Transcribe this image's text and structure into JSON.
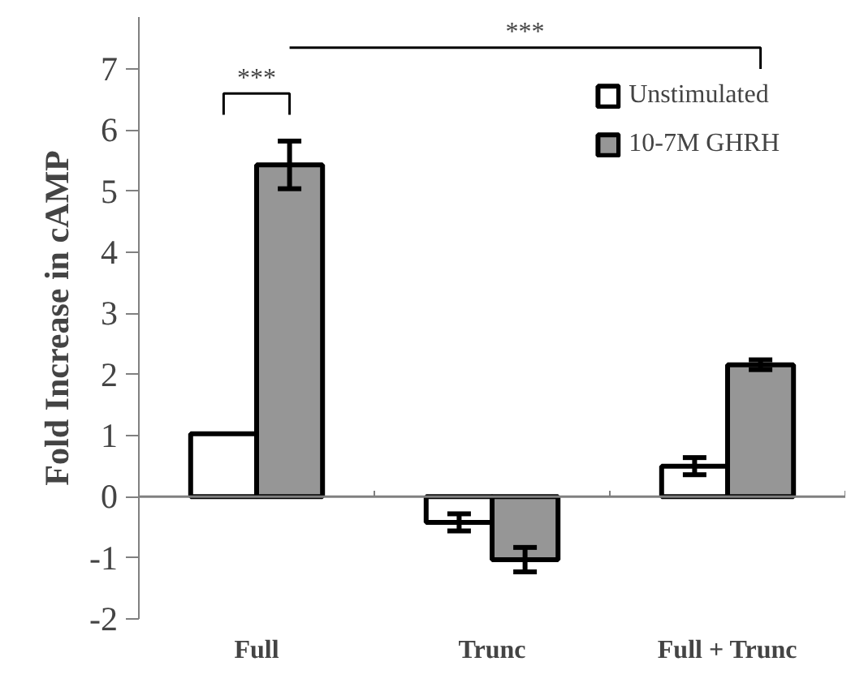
{
  "chart_data": {
    "type": "bar",
    "ylabel": "Fold Increase in cAMP",
    "categories": [
      "Full",
      "Trunc",
      "Full + Trunc"
    ],
    "series": [
      {
        "name": "Unstimulated",
        "color": "#ffffff",
        "values": [
          1.03,
          -0.42,
          0.5
        ],
        "errors": [
          null,
          0.14,
          0.14
        ]
      },
      {
        "name": "10-7M GHRH",
        "color": "#969696",
        "values": [
          5.43,
          -1.03,
          2.16
        ],
        "errors": [
          0.39,
          0.2,
          0.08
        ]
      }
    ],
    "ylim": [
      -2,
      7.85
    ],
    "ref_lines": [
      {
        "axis": "y",
        "value": 0
      }
    ],
    "yticks": [
      -2,
      -1,
      0,
      1,
      2,
      3,
      4,
      5,
      6,
      7
    ],
    "grid": false,
    "legend": "top right",
    "annotations": [
      "***",
      "***"
    ]
  }
}
